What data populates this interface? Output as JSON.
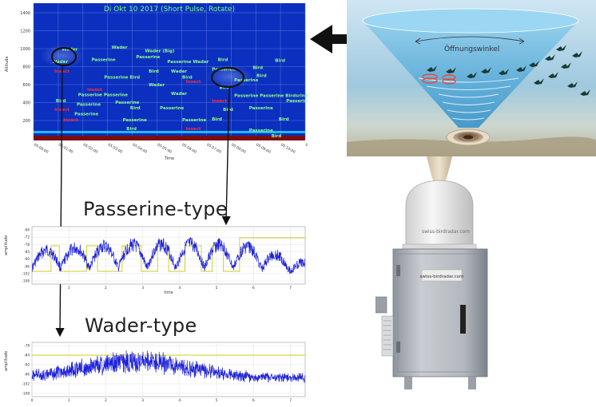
{
  "radar_plot": {
    "title": "Di Okt 10 2017 (Short Pulse, Rotate)",
    "ylabel": "Altitude",
    "xlabel": "Time",
    "y_ticks": [
      "1400",
      "1200",
      "1000",
      "800",
      "600",
      "400",
      "200"
    ],
    "x_ticks": [
      "05:00:00",
      "05:01:00",
      "05:02:00",
      "05:03:00",
      "05:04:00",
      "05:05:00",
      "05:06:00",
      "05:07:00",
      "05:08:00",
      "05:09:00",
      "05:10:00",
      "05:11:00"
    ],
    "target_labels": [
      {
        "text": "Wader",
        "cls": "W",
        "x": 38,
        "y": 30
      },
      {
        "text": "Wader",
        "cls": "W",
        "x": 105,
        "y": 27
      },
      {
        "text": "Wader (Big)",
        "cls": "W",
        "x": 150,
        "y": 32
      },
      {
        "text": "Passerine",
        "cls": "W",
        "x": 138,
        "y": 40
      },
      {
        "text": "Passerine",
        "cls": "W",
        "x": 78,
        "y": 44
      },
      {
        "text": "Wader",
        "cls": "W",
        "x": 25,
        "y": 47
      },
      {
        "text": "Passerine Wader",
        "cls": "W",
        "x": 180,
        "y": 47
      },
      {
        "text": "Bird",
        "cls": "B",
        "x": 248,
        "y": 44
      },
      {
        "text": "Passerine",
        "cls": "W",
        "x": 240,
        "y": 57
      },
      {
        "text": "Bird",
        "cls": "B",
        "x": 325,
        "y": 45
      },
      {
        "text": "Bird",
        "cls": "B",
        "x": 295,
        "y": 55
      },
      {
        "text": "Insect",
        "cls": "I",
        "x": 28,
        "y": 60
      },
      {
        "text": "Passerine Bird",
        "cls": "W",
        "x": 95,
        "y": 68
      },
      {
        "text": "Bird",
        "cls": "B",
        "x": 155,
        "y": 60
      },
      {
        "text": "Wader",
        "cls": "W",
        "x": 185,
        "y": 60
      },
      {
        "text": "Bird",
        "cls": "B",
        "x": 200,
        "y": 68
      },
      {
        "text": "Insect",
        "cls": "I",
        "x": 205,
        "y": 74
      },
      {
        "text": "Passerine",
        "cls": "W",
        "x": 270,
        "y": 72
      },
      {
        "text": "Bird",
        "cls": "B",
        "x": 300,
        "y": 66
      },
      {
        "text": "Wader",
        "cls": "W",
        "x": 155,
        "y": 78
      },
      {
        "text": "Insect",
        "cls": "I",
        "x": 72,
        "y": 85
      },
      {
        "text": "Passerine Passerine",
        "cls": "W",
        "x": 60,
        "y": 92
      },
      {
        "text": "Wader",
        "cls": "W",
        "x": 185,
        "y": 90
      },
      {
        "text": "Bird",
        "cls": "B",
        "x": 250,
        "y": 82
      },
      {
        "text": "Passerine Passerine Birdsrine",
        "cls": "W",
        "x": 270,
        "y": 93
      },
      {
        "text": "Bird",
        "cls": "B",
        "x": 30,
        "y": 100
      },
      {
        "text": "Passerine",
        "cls": "W",
        "x": 58,
        "y": 105
      },
      {
        "text": "Passerine",
        "cls": "W",
        "x": 110,
        "y": 102
      },
      {
        "text": "Insect",
        "cls": "I",
        "x": 240,
        "y": 100
      },
      {
        "text": "Passerine",
        "cls": "W",
        "x": 55,
        "y": 118
      },
      {
        "text": "Insect",
        "cls": "I",
        "x": 28,
        "y": 112
      },
      {
        "text": "Passerine",
        "cls": "W",
        "x": 170,
        "y": 110
      },
      {
        "text": "Bird",
        "cls": "B",
        "x": 130,
        "y": 110
      },
      {
        "text": "Passerine",
        "cls": "W",
        "x": 290,
        "y": 110
      },
      {
        "text": "Bird",
        "cls": "B",
        "x": 255,
        "y": 112
      },
      {
        "text": "Passerine",
        "cls": "W",
        "x": 120,
        "y": 126
      },
      {
        "text": "Insect",
        "cls": "I",
        "x": 40,
        "y": 126
      },
      {
        "text": "Passerine",
        "cls": "W",
        "x": 200,
        "y": 126
      },
      {
        "text": "Insect",
        "cls": "I",
        "x": 205,
        "y": 138
      },
      {
        "text": "Bird",
        "cls": "B",
        "x": 240,
        "y": 125
      },
      {
        "text": "Bird",
        "cls": "B",
        "x": 125,
        "y": 138
      },
      {
        "text": "Passerine",
        "cls": "W",
        "x": 290,
        "y": 140
      },
      {
        "text": "Bird",
        "cls": "B",
        "x": 330,
        "y": 125
      },
      {
        "text": "Bird",
        "cls": "B",
        "x": 320,
        "y": 148
      },
      {
        "text": "Passerine",
        "cls": "W",
        "x": 340,
        "y": 100
      }
    ]
  },
  "signals": {
    "passerine": {
      "title": "Passerine-type",
      "ylabel": "amplitude",
      "xlabel": "time",
      "y_ticks": [
        "-66",
        "-72",
        "-78",
        "-84",
        "-90",
        "-96",
        "-102",
        "-108"
      ],
      "x_ticks": [
        "1",
        "2",
        "3",
        "4",
        "5",
        "6",
        "7"
      ]
    },
    "wader": {
      "title": "Wader-type",
      "ylabel": "amplitude",
      "y_ticks": [
        "-78",
        "-84",
        "-90",
        "-96",
        "-102",
        "-108"
      ],
      "x_ticks": [
        "0",
        "1",
        "2",
        "3",
        "4",
        "5",
        "6",
        "7"
      ]
    }
  },
  "cone": {
    "label": "Öffnungswinkel"
  },
  "device": {
    "brand_label": "swiss-birdradar.com"
  },
  "colors": {
    "plot_bg": "#0b2fbf",
    "wader_label": "#8dff8d",
    "insect_label": "#ff3030",
    "signal_line": "#1e22d8",
    "threshold_line": "#cccc22",
    "arrow": "#111111"
  }
}
